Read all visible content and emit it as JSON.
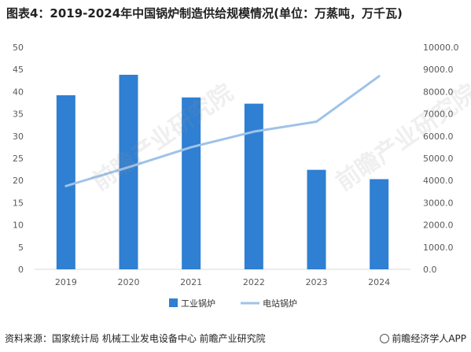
{
  "title": "图表4：2019-2024年中国锅炉制造供给规模情况(单位：万蒸吨，万千瓦)",
  "source": "资料来源：国家统计局 机械工业发电设备中心 前瞻产业研究院",
  "brand": "前瞻经济学人APP",
  "watermark": "前瞻产业研究院",
  "chart_data": {
    "type": "bar",
    "categories": [
      "2019",
      "2020",
      "2021",
      "2022",
      "2023",
      "2024"
    ],
    "series": [
      {
        "name": "工业锅炉",
        "type": "bar",
        "axis": "left",
        "color": "#2f7fd3",
        "values": [
          39.2,
          43.8,
          38.7,
          37.3,
          22.4,
          20.3
        ]
      },
      {
        "name": "电站锅炉",
        "type": "line",
        "axis": "right",
        "color": "#9fc3e8",
        "values": [
          3750,
          4600,
          5500,
          6200,
          6650,
          8700
        ]
      }
    ],
    "ylim_left": [
      0,
      50
    ],
    "yticks_left": [
      "0",
      "5",
      "10",
      "15",
      "20",
      "25",
      "30",
      "35",
      "40",
      "45",
      "50"
    ],
    "ylim_right": [
      0,
      10000
    ],
    "yticks_right": [
      "0.0",
      "1000.0",
      "2000.0",
      "3000.0",
      "4000.0",
      "5000.0",
      "6000.0",
      "7000.0",
      "8000.0",
      "9000.0",
      "10000.0"
    ],
    "grid": false,
    "legend": "bottom"
  }
}
